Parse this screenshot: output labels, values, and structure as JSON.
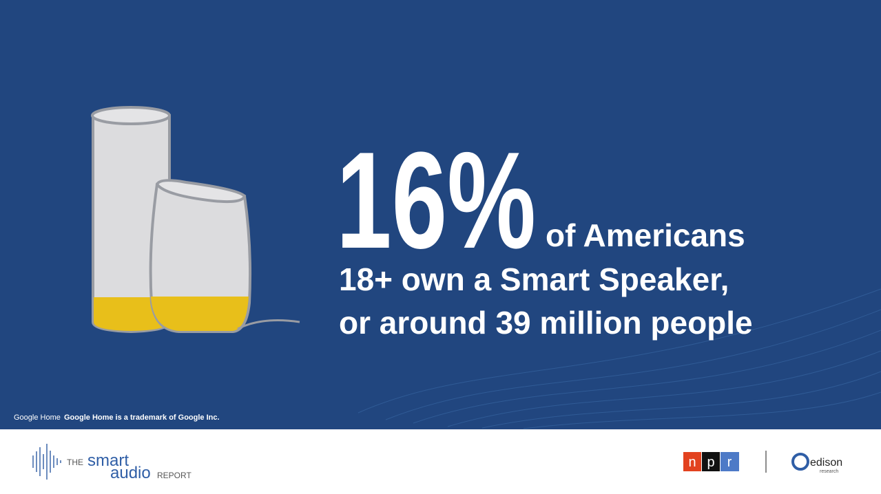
{
  "headline": {
    "stat": "16%",
    "line1": "of Americans",
    "line2": "18+ own a Smart Speaker,",
    "line3": "or around 39 million people"
  },
  "footnote": {
    "brand": "Google Home",
    "text": "Google Home is a trademark of Google Inc."
  },
  "footer": {
    "report": {
      "the": "THE",
      "smart": "smart",
      "audio": "audio",
      "report": "REPORT"
    },
    "npr": [
      "n",
      "p",
      "r"
    ],
    "edison": {
      "name": "edison",
      "sub": "research"
    }
  }
}
